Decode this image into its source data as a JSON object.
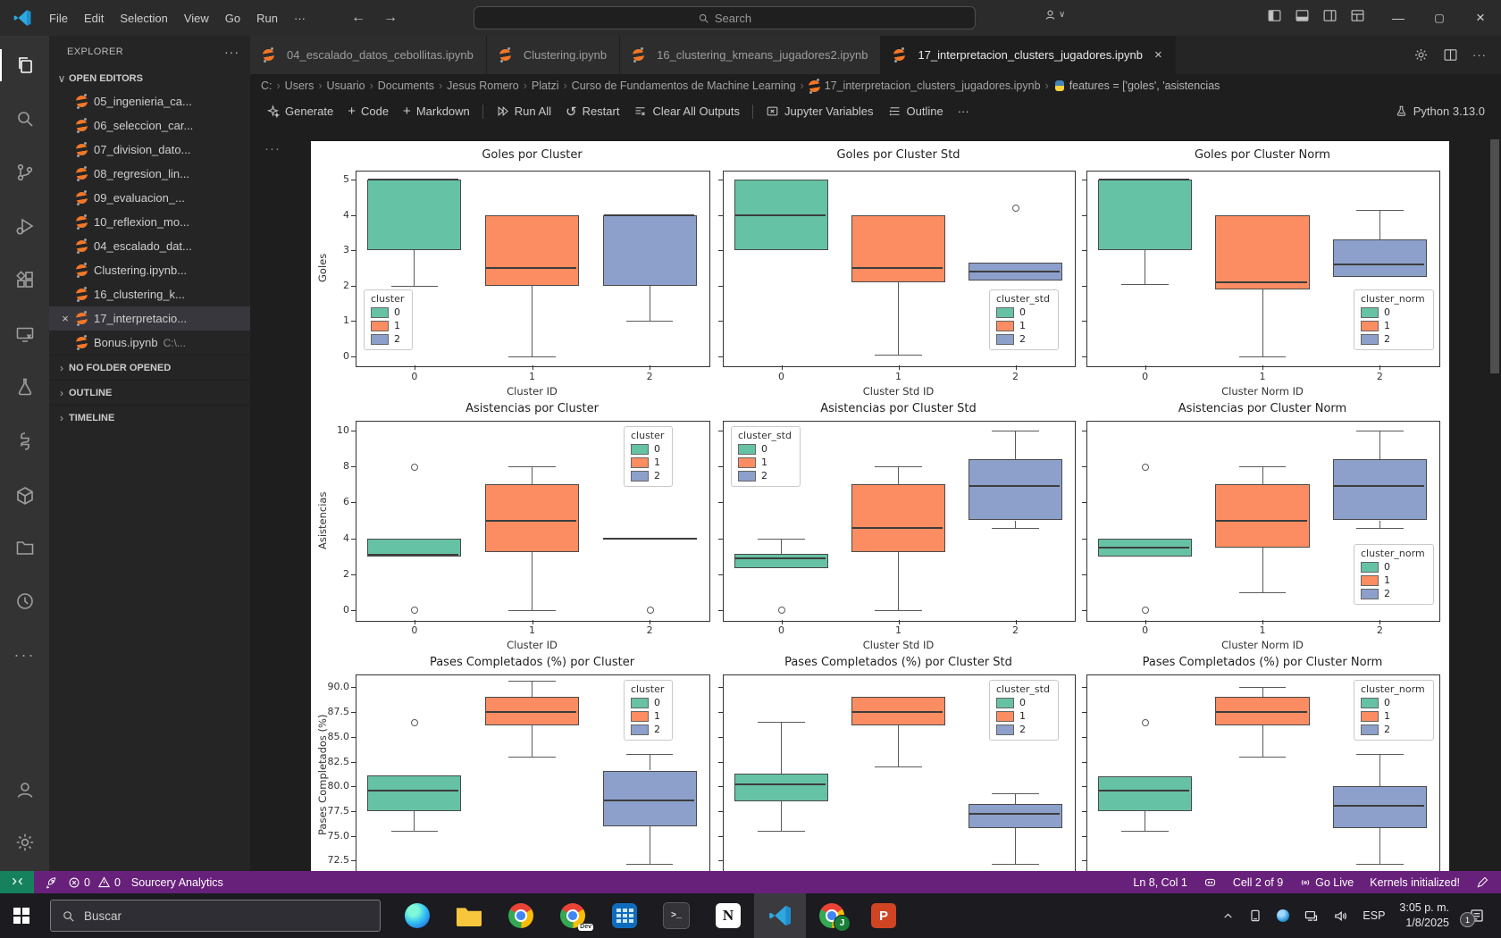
{
  "titlebar": {
    "menus": [
      "File",
      "Edit",
      "Selection",
      "View",
      "Go",
      "Run",
      "···"
    ],
    "search_placeholder": "Search"
  },
  "tabs": [
    {
      "label": "04_escalado_datos_cebollitas.ipynb",
      "active": false
    },
    {
      "label": "Clustering.ipynb",
      "active": false
    },
    {
      "label": "16_clustering_kmeans_jugadores2.ipynb",
      "active": false
    },
    {
      "label": "17_interpretacion_clusters_jugadores.ipynb",
      "active": true
    }
  ],
  "breadcrumb": {
    "path": [
      "C:",
      "Users",
      "Usuario",
      "Documents",
      "Jesus Romero",
      "Platzi",
      "Curso de Fundamentos de Machine Learning"
    ],
    "file": "17_interpretacion_clusters_jugadores.ipynb",
    "symbol": "features = ['goles', 'asistencias"
  },
  "toolbar": {
    "buttons": [
      "Generate",
      "Code",
      "Markdown",
      "Run All",
      "Restart",
      "Clear All Outputs",
      "Jupyter Variables",
      "Outline",
      "···"
    ],
    "kernel_label": "Python 3.13.0"
  },
  "sidebar": {
    "title": "EXPLORER",
    "open_editors_label": "OPEN EDITORS",
    "items": [
      {
        "label": "05_ingenieria_ca...",
        "active": false
      },
      {
        "label": "06_seleccion_car...",
        "active": false
      },
      {
        "label": "07_division_dato...",
        "active": false
      },
      {
        "label": "08_regresion_lin...",
        "active": false
      },
      {
        "label": "09_evaluacion_...",
        "active": false
      },
      {
        "label": "10_reflexion_mo...",
        "active": false
      },
      {
        "label": "04_escalado_dat...",
        "active": false
      },
      {
        "label": "Clustering.ipynb...",
        "active": false
      },
      {
        "label": "16_clustering_k...",
        "active": false
      },
      {
        "label": "17_interpretacio...",
        "active": true
      },
      {
        "label": "Bonus.ipynb",
        "suffix": "C:\\...",
        "active": false
      }
    ],
    "footer": [
      "NO FOLDER OPENED",
      "OUTLINE",
      "TIMELINE"
    ]
  },
  "statusbar": {
    "errors": "0",
    "warnings": "0",
    "extension": "Sourcery Analytics",
    "line_col": "Ln 8, Col 1",
    "cell": "Cell 2 of 9",
    "golive": "Go Live",
    "kernels": "Kernels initialized!"
  },
  "taskbar": {
    "search_placeholder": "Buscar",
    "terminal_glyph": ">_",
    "notion_letter": "N",
    "ppt_letter": "P",
    "chromedev_badge": "Dev",
    "profile_letter": "J",
    "lang": "ESP",
    "time": "3:05 p. m.",
    "date": "1/8/2025",
    "notif_badge": "1"
  },
  "chart_colors": {
    "0": "#66c2a5",
    "1": "#fc8d62",
    "2": "#8da0cb"
  },
  "chart_data": [
    {
      "type": "box",
      "title": "Goles por Cluster",
      "ylabel": "Goles",
      "xlabel": "Cluster ID",
      "categories": [
        "0",
        "1",
        "2"
      ],
      "ylim": [
        -0.25,
        5.25
      ],
      "yticks": [
        "0",
        "1",
        "2",
        "3",
        "4",
        "5"
      ],
      "show_ytick_labels": true,
      "show_xtick_labels": true,
      "legend": {
        "title": "cluster",
        "entries": [
          "0",
          "1",
          "2"
        ],
        "position": "bottom-left"
      },
      "boxes": [
        {
          "cluster": "0",
          "q1": 3,
          "q3": 5,
          "median": 5,
          "whisker_low": 2,
          "whisker_high": 5,
          "outliers": []
        },
        {
          "cluster": "1",
          "q1": 2,
          "q3": 4,
          "median": 2.5,
          "whisker_low": 0,
          "whisker_high": 4,
          "outliers": []
        },
        {
          "cluster": "2",
          "q1": 2,
          "q3": 4,
          "median": 4,
          "whisker_low": 1,
          "whisker_high": 4,
          "outliers": []
        }
      ]
    },
    {
      "type": "box",
      "title": "Goles por Cluster Std",
      "ylabel": "",
      "xlabel": "Cluster Std ID",
      "categories": [
        "0",
        "1",
        "2"
      ],
      "ylim": [
        -0.25,
        5.25
      ],
      "yticks": [
        "0",
        "1",
        "2",
        "3",
        "4",
        "5"
      ],
      "show_ytick_labels": false,
      "show_xtick_labels": true,
      "legend": {
        "title": "cluster_std",
        "entries": [
          "0",
          "1",
          "2"
        ],
        "position": "bottom-right"
      },
      "boxes": [
        {
          "cluster": "0",
          "q1": 3,
          "q3": 5,
          "median": 4,
          "whisker_low": 3,
          "whisker_high": 5,
          "outliers": []
        },
        {
          "cluster": "1",
          "q1": 2.1,
          "q3": 4,
          "median": 2.5,
          "whisker_low": 0.05,
          "whisker_high": 4,
          "outliers": []
        },
        {
          "cluster": "2",
          "q1": 2.15,
          "q3": 2.65,
          "median": 2.4,
          "whisker_low": 2.15,
          "whisker_high": 2.65,
          "outliers": [
            4.2
          ]
        }
      ]
    },
    {
      "type": "box",
      "title": "Goles por Cluster Norm",
      "ylabel": "",
      "xlabel": "Cluster Norm ID",
      "categories": [
        "0",
        "1",
        "2"
      ],
      "ylim": [
        -0.25,
        5.25
      ],
      "yticks": [
        "0",
        "1",
        "2",
        "3",
        "4",
        "5"
      ],
      "show_ytick_labels": false,
      "show_xtick_labels": true,
      "legend": {
        "title": "cluster_norm",
        "entries": [
          "0",
          "1",
          "2"
        ],
        "position": "bottom-right"
      },
      "boxes": [
        {
          "cluster": "0",
          "q1": 3,
          "q3": 5,
          "median": 5,
          "whisker_low": 2.05,
          "whisker_high": 5,
          "outliers": []
        },
        {
          "cluster": "1",
          "q1": 1.9,
          "q3": 4,
          "median": 2.1,
          "whisker_low": 0,
          "whisker_high": 4,
          "outliers": []
        },
        {
          "cluster": "2",
          "q1": 2.25,
          "q3": 3.3,
          "median": 2.6,
          "whisker_low": 2.25,
          "whisker_high": 4.15,
          "outliers": []
        }
      ]
    },
    {
      "type": "box",
      "title": "Asistencias por Cluster",
      "ylabel": "Asistencias",
      "xlabel": "Cluster ID",
      "categories": [
        "0",
        "1",
        "2"
      ],
      "ylim": [
        -0.55,
        10.55
      ],
      "yticks": [
        "0",
        "2",
        "4",
        "6",
        "8",
        "10"
      ],
      "show_ytick_labels": true,
      "show_xtick_labels": true,
      "legend": {
        "title": "cluster",
        "entries": [
          "0",
          "1",
          "2"
        ],
        "position": "top-right"
      },
      "boxes": [
        {
          "cluster": "0",
          "q1": 3,
          "q3": 4,
          "median": 3.1,
          "whisker_low": 3,
          "whisker_high": 4,
          "outliers": [
            8,
            0
          ]
        },
        {
          "cluster": "1",
          "q1": 3.25,
          "q3": 7,
          "median": 5,
          "whisker_low": 0,
          "whisker_high": 8,
          "outliers": []
        },
        {
          "cluster": "2",
          "q1": 4,
          "q3": 4,
          "median": 4,
          "whisker_low": 4,
          "whisker_high": 4,
          "flat": true,
          "outliers": [
            10,
            0
          ]
        }
      ]
    },
    {
      "type": "box",
      "title": "Asistencias por Cluster Std",
      "ylabel": "",
      "xlabel": "Cluster Std ID",
      "categories": [
        "0",
        "1",
        "2"
      ],
      "ylim": [
        -0.55,
        10.55
      ],
      "yticks": [
        "0",
        "2",
        "4",
        "6",
        "8",
        "10"
      ],
      "show_ytick_labels": false,
      "show_xtick_labels": true,
      "legend": {
        "title": "cluster_std",
        "entries": [
          "0",
          "1",
          "2"
        ],
        "position": "top-left"
      },
      "boxes": [
        {
          "cluster": "0",
          "q1": 2.35,
          "q3": 3.15,
          "median": 2.9,
          "whisker_low": 2.35,
          "whisker_high": 4,
          "outliers": [
            0
          ]
        },
        {
          "cluster": "1",
          "q1": 3.25,
          "q3": 7,
          "median": 4.6,
          "whisker_low": 0,
          "whisker_high": 8,
          "outliers": []
        },
        {
          "cluster": "2",
          "q1": 5,
          "q3": 8.4,
          "median": 6.9,
          "whisker_low": 4.6,
          "whisker_high": 10,
          "outliers": []
        }
      ]
    },
    {
      "type": "box",
      "title": "Asistencias por Cluster Norm",
      "ylabel": "",
      "xlabel": "Cluster Norm ID",
      "categories": [
        "0",
        "1",
        "2"
      ],
      "ylim": [
        -0.55,
        10.55
      ],
      "yticks": [
        "0",
        "2",
        "4",
        "6",
        "8",
        "10"
      ],
      "show_ytick_labels": false,
      "show_xtick_labels": true,
      "legend": {
        "title": "cluster_norm",
        "entries": [
          "0",
          "1",
          "2"
        ],
        "position": "bottom-right"
      },
      "boxes": [
        {
          "cluster": "0",
          "q1": 3,
          "q3": 4,
          "median": 3.5,
          "whisker_low": 3,
          "whisker_high": 4,
          "outliers": [
            8,
            0
          ]
        },
        {
          "cluster": "1",
          "q1": 3.5,
          "q3": 7,
          "median": 5,
          "whisker_low": 1,
          "whisker_high": 8,
          "outliers": []
        },
        {
          "cluster": "2",
          "q1": 5,
          "q3": 8.4,
          "median": 6.9,
          "whisker_low": 4.6,
          "whisker_high": 10,
          "outliers": []
        }
      ]
    },
    {
      "type": "box",
      "title": "Pases Completados (%) por Cluster",
      "ylabel": "Pases Completados (%)",
      "xlabel": null,
      "categories": [
        "0",
        "1",
        "2"
      ],
      "ylim": [
        71.0,
        91.3
      ],
      "yticks": [
        "72.5",
        "75.0",
        "77.5",
        "80.0",
        "82.5",
        "85.0",
        "87.5",
        "90.0"
      ],
      "show_ytick_labels": true,
      "show_xtick_labels": false,
      "legend": {
        "title": "cluster",
        "entries": [
          "0",
          "1",
          "2"
        ],
        "position": "top-right"
      },
      "boxes": [
        {
          "cluster": "0",
          "q1": 77.5,
          "q3": 81.1,
          "median": 79.6,
          "whisker_low": 75.5,
          "whisker_high": 81.1,
          "outliers": [
            86.5
          ]
        },
        {
          "cluster": "1",
          "q1": 86.2,
          "q3": 89,
          "median": 87.5,
          "whisker_low": 83,
          "whisker_high": 90.7,
          "outliers": []
        },
        {
          "cluster": "2",
          "q1": 76,
          "q3": 81.6,
          "median": 78.6,
          "whisker_low": 72.2,
          "whisker_high": 83.3,
          "outliers": []
        }
      ]
    },
    {
      "type": "box",
      "title": "Pases Completados (%) por Cluster Std",
      "ylabel": "",
      "xlabel": null,
      "categories": [
        "0",
        "1",
        "2"
      ],
      "ylim": [
        71.0,
        91.3
      ],
      "yticks": [
        "72.5",
        "75.0",
        "77.5",
        "80.0",
        "82.5",
        "85.0",
        "87.5",
        "90.0"
      ],
      "show_ytick_labels": false,
      "show_xtick_labels": false,
      "legend": {
        "title": "cluster_std",
        "entries": [
          "0",
          "1",
          "2"
        ],
        "position": "top-right"
      },
      "boxes": [
        {
          "cluster": "0",
          "q1": 78.5,
          "q3": 81.3,
          "median": 80.2,
          "whisker_low": 75.5,
          "whisker_high": 86.5,
          "outliers": []
        },
        {
          "cluster": "1",
          "q1": 86.2,
          "q3": 89,
          "median": 87.5,
          "whisker_low": 82,
          "whisker_high": 89,
          "outliers": []
        },
        {
          "cluster": "2",
          "q1": 75.8,
          "q3": 78.2,
          "median": 77.2,
          "whisker_low": 72.2,
          "whisker_high": 79.3,
          "outliers": []
        }
      ]
    },
    {
      "type": "box",
      "title": "Pases Completados (%) por Cluster Norm",
      "ylabel": "",
      "xlabel": null,
      "categories": [
        "0",
        "1",
        "2"
      ],
      "ylim": [
        71.0,
        91.3
      ],
      "yticks": [
        "72.5",
        "75.0",
        "77.5",
        "80.0",
        "82.5",
        "85.0",
        "87.5",
        "90.0"
      ],
      "show_ytick_labels": false,
      "show_xtick_labels": false,
      "legend": {
        "title": "cluster_norm",
        "entries": [
          "0",
          "1",
          "2"
        ],
        "position": "top-right"
      },
      "boxes": [
        {
          "cluster": "0",
          "q1": 77.5,
          "q3": 81,
          "median": 79.6,
          "whisker_low": 75.5,
          "whisker_high": 81,
          "outliers": [
            86.5
          ]
        },
        {
          "cluster": "1",
          "q1": 86.2,
          "q3": 89,
          "median": 87.5,
          "whisker_low": 83,
          "whisker_high": 90,
          "outliers": []
        },
        {
          "cluster": "2",
          "q1": 75.8,
          "q3": 80,
          "median": 78,
          "whisker_low": 72.2,
          "whisker_high": 83.3,
          "outliers": []
        }
      ]
    }
  ]
}
